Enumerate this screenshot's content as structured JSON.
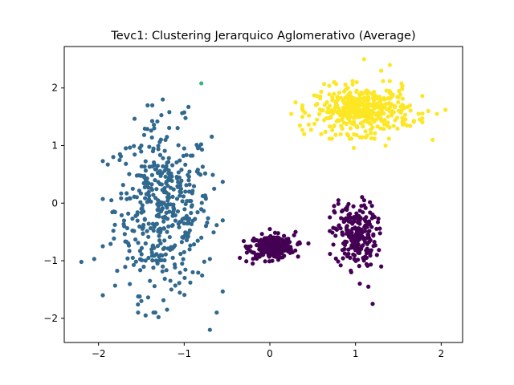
{
  "chart_data": {
    "type": "scatter",
    "title": "Tevc1: Clustering Jerarquico Aglomerativo (Average)",
    "xlabel": "",
    "ylabel": "",
    "xlim": [
      -2.4,
      2.25
    ],
    "ylim": [
      -2.42,
      2.72
    ],
    "xticks": [
      -2,
      -1,
      0,
      1,
      2
    ],
    "yticks": [
      -2,
      -1,
      0,
      1,
      2
    ],
    "xtick_labels": [
      "−2",
      "−1",
      "0",
      "1",
      "2"
    ],
    "ytick_labels": [
      "−2",
      "−1",
      "0",
      "1",
      "2"
    ],
    "grid": false,
    "legend": "none",
    "colors": {
      "cluster_left": "#31688e",
      "cluster_outlier": "#35b779",
      "cluster_bottom": "#440154",
      "cluster_top": "#fde725"
    },
    "series": [
      {
        "color_key": "cluster_left",
        "description_points": [
          [
            -1.25,
            1.8
          ],
          [
            -0.95,
            1.67
          ],
          [
            -1.35,
            1.3
          ],
          [
            -1.5,
            1.0
          ],
          [
            -1.0,
            0.95
          ],
          [
            -1.75,
            0.85
          ],
          [
            -1.2,
            0.7
          ],
          [
            -0.85,
            0.55
          ],
          [
            -1.45,
            0.4
          ],
          [
            -1.6,
            0.25
          ],
          [
            -1.05,
            0.2
          ],
          [
            -0.75,
            0.1
          ],
          [
            -1.85,
            0.05
          ],
          [
            -1.3,
            -0.05
          ],
          [
            -1.55,
            -0.2
          ],
          [
            -0.95,
            -0.3
          ],
          [
            -1.7,
            -0.4
          ],
          [
            -1.2,
            -0.5
          ],
          [
            -0.8,
            -0.6
          ],
          [
            -1.45,
            -0.7
          ],
          [
            -1.0,
            -0.85
          ],
          [
            -1.6,
            -0.95
          ],
          [
            -1.25,
            -1.1
          ],
          [
            -0.9,
            -1.2
          ],
          [
            -1.4,
            -1.35
          ],
          [
            -1.15,
            -1.5
          ],
          [
            -1.5,
            -1.7
          ],
          [
            -1.2,
            -1.85
          ],
          [
            -1.45,
            -1.95
          ],
          [
            -1.3,
            -1.98
          ],
          [
            -2.2,
            -1.02
          ],
          [
            -2.05,
            -0.97
          ],
          [
            -1.95,
            -1.6
          ],
          [
            -0.7,
            -0.97
          ],
          [
            -0.55,
            0.37
          ],
          [
            -0.65,
            0.25
          ],
          [
            -0.7,
            -2.2
          ]
        ],
        "center": [
          -1.25,
          -0.1
        ],
        "spread": [
          0.28,
          0.72
        ],
        "count": 420
      },
      {
        "color_key": "cluster_outlier",
        "description_points": [
          [
            -0.8,
            2.08
          ]
        ],
        "count": 1
      },
      {
        "color_key": "cluster_bottom",
        "description_points": [
          [
            -0.15,
            -0.95
          ],
          [
            0.3,
            -0.5
          ],
          [
            0.1,
            -0.6
          ],
          [
            -0.35,
            -0.95
          ],
          [
            0.35,
            -0.7
          ],
          [
            -0.2,
            -1.05
          ],
          [
            0.0,
            -0.45
          ],
          [
            0.45,
            -0.7
          ],
          [
            0.8,
            0.05
          ],
          [
            0.9,
            -0.1
          ],
          [
            1.2,
            -0.2
          ],
          [
            1.0,
            -0.7
          ],
          [
            1.25,
            -0.9
          ],
          [
            0.95,
            -1.2
          ],
          [
            1.3,
            -1.1
          ],
          [
            1.05,
            -1.4
          ],
          [
            1.15,
            -1.45
          ],
          [
            1.2,
            -1.75
          ],
          [
            0.75,
            -0.05
          ],
          [
            1.05,
            -0.3
          ]
        ],
        "clusters": [
          {
            "center": [
              0.02,
              -0.76
            ],
            "spread": [
              0.13,
              0.1
            ],
            "count": 260
          },
          {
            "center": [
              1.0,
              -0.55
            ],
            "spread": [
              0.12,
              0.28
            ],
            "count": 220
          }
        ]
      },
      {
        "color_key": "cluster_top",
        "description_points": [
          [
            1.1,
            2.5
          ],
          [
            1.4,
            2.4
          ],
          [
            1.3,
            2.3
          ],
          [
            0.75,
            2.1
          ],
          [
            1.85,
            1.6
          ],
          [
            2.05,
            1.62
          ],
          [
            1.95,
            1.55
          ],
          [
            1.9,
            1.1
          ],
          [
            0.6,
            1.2
          ],
          [
            0.4,
            1.2
          ],
          [
            0.3,
            1.75
          ],
          [
            0.25,
            1.55
          ],
          [
            0.35,
            1.35
          ],
          [
            1.35,
            1.0
          ],
          [
            0.98,
            0.96
          ],
          [
            0.55,
            1.45
          ],
          [
            1.6,
            1.35
          ],
          [
            1.75,
            1.45
          ]
        ],
        "center": [
          1.08,
          1.62
        ],
        "spread": [
          0.28,
          0.2
        ],
        "count": 420
      }
    ]
  }
}
